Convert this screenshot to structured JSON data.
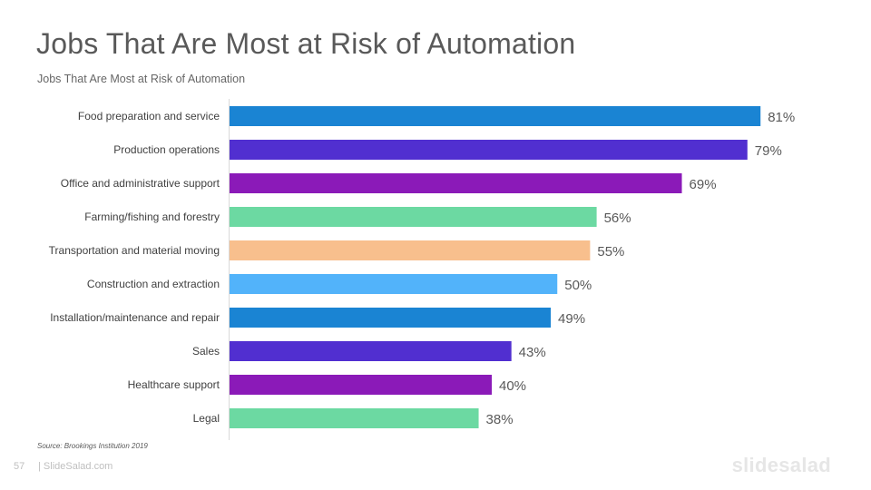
{
  "slide": {
    "title": "Jobs That Are Most at Risk of Automation",
    "subtitle": "Jobs That Are Most at Risk of Automation",
    "source": "Source: Brookings  Institution  2019",
    "page_number": "57",
    "site": "| SlideSalad.com",
    "logo": "slidesalad"
  },
  "chart_data": {
    "type": "bar",
    "orientation": "horizontal",
    "title": "",
    "xlabel": "",
    "ylabel": "",
    "xlim": [
      0,
      100
    ],
    "value_suffix": "%",
    "grid": false,
    "categories": [
      "Food preparation and service",
      "Production operations",
      "Office and administrative support",
      "Farming/fishing and forestry",
      "Transportation and material moving",
      "Construction and extraction",
      "Installation/maintenance and repair",
      "Sales",
      "Healthcare support",
      "Legal"
    ],
    "values": [
      81,
      79,
      69,
      56,
      55,
      50,
      49,
      43,
      40,
      38
    ],
    "data_labels": [
      "81%",
      "79%",
      "69%",
      "56%",
      "55%",
      "50%",
      "49%",
      "43%",
      "40%",
      "38%"
    ],
    "colors": [
      "#1a84d3",
      "#512fd0",
      "#8b1ab8",
      "#6cd9a2",
      "#f8bf8d",
      "#52b3fa",
      "#1a84d3",
      "#512fd0",
      "#8b1ab8",
      "#6cd9a2"
    ]
  }
}
